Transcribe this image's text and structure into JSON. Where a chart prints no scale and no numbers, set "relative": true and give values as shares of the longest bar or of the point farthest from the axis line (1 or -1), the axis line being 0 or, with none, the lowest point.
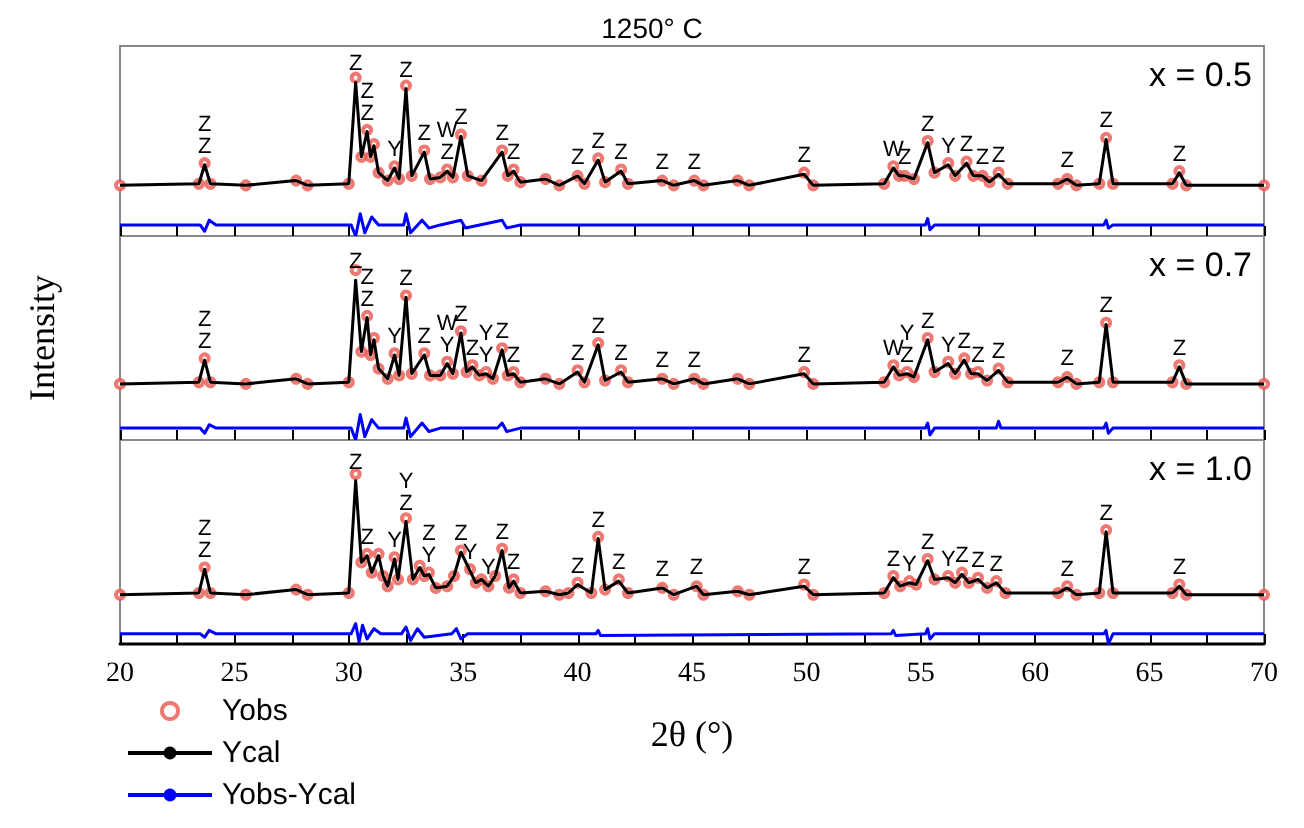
{
  "chart_data": [
    {
      "type": "line",
      "title": "1250° C",
      "relative": true,
      "xlim": [
        20,
        70
      ],
      "xticks": [
        20,
        {
          "value": 22.5,
          "label": null
        },
        25,
        {
          "value": 27.5,
          "label": null
        },
        30,
        {
          "value": 32.5,
          "label": null
        },
        35,
        {
          "value": 37.5,
          "label": null
        },
        40,
        {
          "value": 42.5,
          "label": null
        },
        45,
        {
          "value": 47.5,
          "label": null
        },
        50,
        {
          "value": 52.5,
          "label": null
        },
        55,
        {
          "value": 57.5,
          "label": null
        },
        60,
        {
          "value": 62.5,
          "label": null
        },
        65,
        {
          "value": 67.5,
          "label": null
        },
        70
      ],
      "tick_labels": false,
      "series": [
        {
          "type": "scatter",
          "marker": "circle",
          "color": "#e8584f",
          "x": [
            20,
            23.45,
            23.7,
            23.95,
            25.5,
            27.7,
            28.2,
            30.0,
            30.3,
            30.55,
            30.8,
            30.95,
            31.1,
            31.3,
            31.7,
            32.0,
            32.2,
            32.5,
            32.75,
            33.3,
            33.55,
            34.0,
            34.3,
            34.55,
            34.9,
            35.2,
            35.8,
            36.7,
            36.95,
            37.2,
            37.5,
            38.6,
            39.2,
            40.0,
            40.3,
            40.9,
            41.2,
            41.9,
            42.2,
            43.7,
            44.2,
            45.1,
            45.5,
            47.0,
            47.5,
            49.9,
            50.3,
            53.4,
            53.8,
            54.05,
            54.3,
            54.7,
            55.3,
            55.6,
            56.2,
            56.5,
            57.0,
            57.3,
            57.7,
            58.0,
            58.4,
            58.8,
            61.0,
            61.4,
            61.8,
            62.8,
            63.1,
            63.4,
            66.0,
            66.3,
            66.6,
            70
          ],
          "values": [
            0.32,
            0.33,
            0.46,
            0.33,
            0.32,
            0.35,
            0.32,
            0.33,
            1.0,
            0.5,
            0.67,
            0.5,
            0.58,
            0.4,
            0.35,
            0.44,
            0.36,
            0.95,
            0.38,
            0.54,
            0.36,
            0.37,
            0.42,
            0.37,
            0.64,
            0.38,
            0.35,
            0.54,
            0.38,
            0.42,
            0.34,
            0.36,
            0.32,
            0.38,
            0.33,
            0.49,
            0.34,
            0.42,
            0.33,
            0.35,
            0.32,
            0.35,
            0.32,
            0.35,
            0.32,
            0.4,
            0.32,
            0.33,
            0.44,
            0.38,
            0.38,
            0.36,
            0.6,
            0.4,
            0.46,
            0.38,
            0.47,
            0.38,
            0.38,
            0.34,
            0.4,
            0.33,
            0.33,
            0.36,
            0.32,
            0.33,
            0.62,
            0.33,
            0.33,
            0.41,
            0.32,
            0.32
          ]
        },
        {
          "type": "line",
          "marker": "none",
          "color": "#000000",
          "x": [
            20,
            23.45,
            23.7,
            23.95,
            25.5,
            27.7,
            28.2,
            30.0,
            30.3,
            30.55,
            30.8,
            30.95,
            31.1,
            31.3,
            31.7,
            32.0,
            32.2,
            32.5,
            32.75,
            33.3,
            33.55,
            34.0,
            34.3,
            34.55,
            34.9,
            35.2,
            35.8,
            36.7,
            36.95,
            37.2,
            37.5,
            38.6,
            39.2,
            40.0,
            40.3,
            40.9,
            41.2,
            41.9,
            42.2,
            43.7,
            44.2,
            45.1,
            45.5,
            47.0,
            47.5,
            49.9,
            50.3,
            53.4,
            53.8,
            54.05,
            54.3,
            54.7,
            55.3,
            55.6,
            56.2,
            56.5,
            57.0,
            57.3,
            57.7,
            58.0,
            58.4,
            58.8,
            61.0,
            61.4,
            61.8,
            62.8,
            63.1,
            63.4,
            66.0,
            66.3,
            66.6,
            70
          ],
          "values": [
            0.32,
            0.33,
            0.45,
            0.33,
            0.32,
            0.35,
            0.32,
            0.33,
            0.97,
            0.5,
            0.66,
            0.5,
            0.57,
            0.4,
            0.35,
            0.43,
            0.36,
            0.93,
            0.38,
            0.53,
            0.36,
            0.37,
            0.41,
            0.37,
            0.63,
            0.38,
            0.35,
            0.53,
            0.38,
            0.41,
            0.34,
            0.36,
            0.32,
            0.38,
            0.33,
            0.48,
            0.34,
            0.41,
            0.33,
            0.35,
            0.32,
            0.35,
            0.32,
            0.35,
            0.32,
            0.39,
            0.32,
            0.33,
            0.43,
            0.38,
            0.38,
            0.36,
            0.59,
            0.4,
            0.45,
            0.38,
            0.46,
            0.38,
            0.38,
            0.34,
            0.39,
            0.33,
            0.33,
            0.36,
            0.32,
            0.33,
            0.61,
            0.33,
            0.33,
            0.4,
            0.32,
            0.32
          ]
        },
        {
          "type": "line",
          "marker": "none",
          "color": "#0000ff",
          "x": [
            20,
            23.5,
            23.7,
            23.9,
            24.2,
            30.1,
            30.3,
            30.5,
            30.7,
            31.0,
            31.3,
            32.4,
            32.5,
            32.7,
            33.2,
            33.5,
            34.0,
            34.9,
            35.1,
            36.7,
            36.9,
            37.5,
            55.2,
            55.3,
            55.4,
            55.6,
            63.0,
            63.1,
            63.2,
            63.4,
            70
          ],
          "values": [
            0.07,
            0.07,
            0.03,
            0.1,
            0.07,
            0.07,
            0.0,
            0.14,
            0.02,
            0.12,
            0.07,
            0.07,
            0.14,
            0.02,
            0.1,
            0.05,
            0.07,
            0.1,
            0.05,
            0.1,
            0.05,
            0.07,
            0.07,
            0.11,
            0.04,
            0.07,
            0.07,
            0.1,
            0.05,
            0.07,
            0.07
          ]
        }
      ],
      "annotations": [
        "x = 0.5",
        {
          "text": "Z",
          "x": 23.7,
          "y": 0.45
        },
        {
          "text": "Z",
          "x": 23.7,
          "y": 0.45
        },
        {
          "text": "Z",
          "x": 30.3,
          "y": 0.97
        },
        {
          "text": "Z",
          "x": 30.8,
          "y": 0.66
        },
        {
          "text": "Z",
          "x": 30.8,
          "y": 0.66
        },
        {
          "text": "Y",
          "x": 32.0,
          "y": 0.43
        },
        {
          "text": "Z",
          "x": 32.5,
          "y": 0.93
        },
        {
          "text": "Z",
          "x": 34.3,
          "y": 0.41
        },
        {
          "text": "W",
          "x": 34.3,
          "y": 0.41
        },
        {
          "text": "Z",
          "x": 34.9,
          "y": 0.63
        },
        {
          "text": "Z",
          "x": 33.3,
          "y": 0.53
        },
        {
          "text": "Z",
          "x": 36.7,
          "y": 0.53
        },
        {
          "text": "Z",
          "x": 37.2,
          "y": 0.41
        },
        {
          "text": "Z",
          "x": 40.0,
          "y": 0.38
        },
        {
          "text": "Z",
          "x": 40.9,
          "y": 0.48
        },
        {
          "text": "Z",
          "x": 41.9,
          "y": 0.41
        },
        {
          "text": "Z",
          "x": 43.7,
          "y": 0.35
        },
        {
          "text": "Z",
          "x": 45.1,
          "y": 0.35
        },
        {
          "text": "Z",
          "x": 49.9,
          "y": 0.39
        },
        {
          "text": "W",
          "x": 53.8,
          "y": 0.43
        },
        {
          "text": "Z",
          "x": 54.3,
          "y": 0.38
        },
        {
          "text": "Z",
          "x": 55.3,
          "y": 0.59
        },
        {
          "text": "Y",
          "x": 56.2,
          "y": 0.45
        },
        {
          "text": "Z",
          "x": 57.0,
          "y": 0.46
        },
        {
          "text": "Z",
          "x": 57.7,
          "y": 0.38
        },
        {
          "text": "Z",
          "x": 58.4,
          "y": 0.39
        },
        {
          "text": "Z",
          "x": 61.4,
          "y": 0.36
        },
        {
          "text": "Z",
          "x": 63.1,
          "y": 0.61
        },
        {
          "text": "Z",
          "x": 66.3,
          "y": 0.4
        }
      ]
    },
    {
      "type": "line",
      "ylabel": "Intensity",
      "relative": true,
      "xlim": [
        20,
        70
      ],
      "xticks": [
        20,
        {
          "value": 22.5,
          "label": null
        },
        25,
        {
          "value": 27.5,
          "label": null
        },
        30,
        {
          "value": 32.5,
          "label": null
        },
        35,
        {
          "value": 37.5,
          "label": null
        },
        40,
        {
          "value": 42.5,
          "label": null
        },
        45,
        {
          "value": 47.5,
          "label": null
        },
        50,
        {
          "value": 52.5,
          "label": null
        },
        55,
        {
          "value": 57.5,
          "label": null
        },
        60,
        {
          "value": 62.5,
          "label": null
        },
        65,
        {
          "value": 67.5,
          "label": null
        },
        70
      ],
      "tick_labels": false,
      "series": [
        {
          "type": "scatter",
          "marker": "circle",
          "color": "#e8584f",
          "x": [
            20,
            23.45,
            23.7,
            23.95,
            25.5,
            27.7,
            28.2,
            30.0,
            30.3,
            30.55,
            30.8,
            30.95,
            31.1,
            31.3,
            31.7,
            32.0,
            32.2,
            32.5,
            32.75,
            33.3,
            33.55,
            34.0,
            34.3,
            34.55,
            34.9,
            35.15,
            35.4,
            35.7,
            36.0,
            36.3,
            36.7,
            36.95,
            37.2,
            37.5,
            38.6,
            39.2,
            40.0,
            40.3,
            40.9,
            41.2,
            41.9,
            42.2,
            43.7,
            44.2,
            45.1,
            45.5,
            47.0,
            47.5,
            49.9,
            50.3,
            53.4,
            53.8,
            54.05,
            54.4,
            54.7,
            55.3,
            55.6,
            56.2,
            56.5,
            56.9,
            57.2,
            57.5,
            57.9,
            58.4,
            58.8,
            61.0,
            61.4,
            61.8,
            62.8,
            63.1,
            63.4,
            66.0,
            66.3,
            66.6,
            70
          ],
          "values": [
            0.33,
            0.34,
            0.48,
            0.34,
            0.33,
            0.36,
            0.33,
            0.34,
            1.0,
            0.52,
            0.73,
            0.5,
            0.6,
            0.42,
            0.36,
            0.51,
            0.38,
            0.85,
            0.39,
            0.51,
            0.38,
            0.38,
            0.46,
            0.39,
            0.64,
            0.4,
            0.44,
            0.38,
            0.4,
            0.36,
            0.54,
            0.38,
            0.4,
            0.34,
            0.36,
            0.33,
            0.41,
            0.34,
            0.57,
            0.35,
            0.41,
            0.34,
            0.36,
            0.33,
            0.36,
            0.33,
            0.36,
            0.33,
            0.4,
            0.33,
            0.34,
            0.44,
            0.38,
            0.4,
            0.37,
            0.6,
            0.4,
            0.46,
            0.39,
            0.48,
            0.39,
            0.4,
            0.35,
            0.42,
            0.34,
            0.34,
            0.37,
            0.33,
            0.34,
            0.69,
            0.34,
            0.34,
            0.44,
            0.33,
            0.33
          ]
        },
        {
          "type": "line",
          "marker": "none",
          "color": "#000000",
          "x": [
            20,
            23.45,
            23.7,
            23.95,
            25.5,
            27.7,
            28.2,
            30.0,
            30.3,
            30.55,
            30.8,
            30.95,
            31.1,
            31.3,
            31.7,
            32.0,
            32.2,
            32.5,
            32.75,
            33.3,
            33.55,
            34.0,
            34.3,
            34.55,
            34.9,
            35.15,
            35.4,
            35.7,
            36.0,
            36.3,
            36.7,
            36.95,
            37.2,
            37.5,
            38.6,
            39.2,
            40.0,
            40.3,
            40.9,
            41.2,
            41.9,
            42.2,
            43.7,
            44.2,
            45.1,
            45.5,
            47.0,
            47.5,
            49.9,
            50.3,
            53.4,
            53.8,
            54.05,
            54.4,
            54.7,
            55.3,
            55.6,
            56.2,
            56.5,
            56.9,
            57.2,
            57.5,
            57.9,
            58.4,
            58.8,
            61.0,
            61.4,
            61.8,
            62.8,
            63.1,
            63.4,
            66.0,
            66.3,
            66.6,
            70
          ],
          "values": [
            0.33,
            0.34,
            0.47,
            0.34,
            0.33,
            0.36,
            0.33,
            0.34,
            0.94,
            0.52,
            0.72,
            0.5,
            0.59,
            0.42,
            0.36,
            0.5,
            0.38,
            0.84,
            0.39,
            0.5,
            0.38,
            0.38,
            0.45,
            0.39,
            0.63,
            0.4,
            0.43,
            0.38,
            0.39,
            0.36,
            0.53,
            0.38,
            0.39,
            0.34,
            0.36,
            0.33,
            0.4,
            0.34,
            0.56,
            0.35,
            0.4,
            0.34,
            0.36,
            0.33,
            0.36,
            0.33,
            0.36,
            0.33,
            0.39,
            0.33,
            0.34,
            0.43,
            0.38,
            0.39,
            0.37,
            0.59,
            0.4,
            0.45,
            0.39,
            0.47,
            0.39,
            0.39,
            0.35,
            0.41,
            0.34,
            0.34,
            0.37,
            0.33,
            0.34,
            0.68,
            0.34,
            0.34,
            0.43,
            0.33,
            0.33
          ]
        },
        {
          "type": "line",
          "marker": "none",
          "color": "#0000ff",
          "x": [
            20,
            23.5,
            23.7,
            23.9,
            24.2,
            30.1,
            30.3,
            30.5,
            30.7,
            31.0,
            31.3,
            32.4,
            32.5,
            32.7,
            33.2,
            33.5,
            34.0,
            36.5,
            36.7,
            36.9,
            37.5,
            55.2,
            55.3,
            55.4,
            55.6,
            58.3,
            58.4,
            58.5,
            63.0,
            63.1,
            63.2,
            63.4,
            70
          ],
          "values": [
            0.07,
            0.07,
            0.04,
            0.09,
            0.07,
            0.07,
            0.0,
            0.15,
            0.02,
            0.12,
            0.07,
            0.07,
            0.13,
            0.02,
            0.1,
            0.05,
            0.07,
            0.07,
            0.1,
            0.05,
            0.07,
            0.07,
            0.1,
            0.03,
            0.07,
            0.07,
            0.11,
            0.07,
            0.07,
            0.1,
            0.04,
            0.07,
            0.07
          ]
        }
      ],
      "annotations": [
        "x = 0.7",
        {
          "text": "Z",
          "x": 23.7,
          "y": 0.47
        },
        {
          "text": "Z",
          "x": 23.7,
          "y": 0.47
        },
        {
          "text": "Z",
          "x": 30.3,
          "y": 0.94
        },
        {
          "text": "Z",
          "x": 30.8,
          "y": 0.72
        },
        {
          "text": "Z",
          "x": 30.8,
          "y": 0.72
        },
        {
          "text": "Y",
          "x": 32.0,
          "y": 0.5
        },
        {
          "text": "Z",
          "x": 32.5,
          "y": 0.84
        },
        {
          "text": "Z",
          "x": 33.3,
          "y": 0.5
        },
        {
          "text": "Y",
          "x": 34.3,
          "y": 0.45
        },
        {
          "text": "W",
          "x": 34.3,
          "y": 0.45
        },
        {
          "text": "Z",
          "x": 34.9,
          "y": 0.63
        },
        {
          "text": "Z",
          "x": 35.4,
          "y": 0.43
        },
        {
          "text": "Y",
          "x": 36.0,
          "y": 0.39
        },
        {
          "text": "Y",
          "x": 36.0,
          "y": 0.39
        },
        {
          "text": "Z",
          "x": 36.7,
          "y": 0.53
        },
        {
          "text": "Z",
          "x": 37.2,
          "y": 0.39
        },
        {
          "text": "Z",
          "x": 40.0,
          "y": 0.4
        },
        {
          "text": "Z",
          "x": 40.9,
          "y": 0.56
        },
        {
          "text": "Z",
          "x": 41.9,
          "y": 0.4
        },
        {
          "text": "Z",
          "x": 43.7,
          "y": 0.36
        },
        {
          "text": "Z",
          "x": 45.1,
          "y": 0.36
        },
        {
          "text": "Z",
          "x": 49.9,
          "y": 0.39
        },
        {
          "text": "W",
          "x": 53.8,
          "y": 0.43
        },
        {
          "text": "Z",
          "x": 54.4,
          "y": 0.39
        },
        {
          "text": "Y",
          "x": 54.4,
          "y": 0.39
        },
        {
          "text": "Z",
          "x": 55.3,
          "y": 0.59
        },
        {
          "text": "Y",
          "x": 56.2,
          "y": 0.45
        },
        {
          "text": "Z",
          "x": 56.9,
          "y": 0.47
        },
        {
          "text": "Z",
          "x": 57.5,
          "y": 0.39
        },
        {
          "text": "Z",
          "x": 58.4,
          "y": 0.41
        },
        {
          "text": "Z",
          "x": 61.4,
          "y": 0.37
        },
        {
          "text": "Z",
          "x": 63.1,
          "y": 0.68
        },
        {
          "text": "Z",
          "x": 66.3,
          "y": 0.43
        }
      ]
    },
    {
      "type": "line",
      "xlabel": "2θ (°)",
      "relative": true,
      "legend": "bottom left",
      "xlim": [
        20,
        70
      ],
      "xticks": [
        20,
        {
          "value": 22.5,
          "label": null
        },
        25,
        {
          "value": 27.5,
          "label": null
        },
        30,
        {
          "value": 32.5,
          "label": null
        },
        35,
        {
          "value": 37.5,
          "label": null
        },
        40,
        {
          "value": 42.5,
          "label": null
        },
        45,
        {
          "value": 47.5,
          "label": null
        },
        50,
        {
          "value": 52.5,
          "label": null
        },
        55,
        {
          "value": 57.5,
          "label": null
        },
        60,
        {
          "value": 62.5,
          "label": null
        },
        65,
        {
          "value": 67.5,
          "label": null
        },
        70
      ],
      "tick_labels": "x",
      "series": [
        {
          "name": "Yobs",
          "type": "scatter",
          "marker": "circle",
          "color": "#e8584f",
          "x": [
            20,
            23.45,
            23.7,
            23.95,
            25.5,
            27.7,
            28.2,
            30.0,
            30.3,
            30.55,
            30.8,
            31.0,
            31.3,
            31.5,
            31.7,
            32.0,
            32.15,
            32.5,
            32.8,
            33.1,
            33.3,
            33.5,
            33.8,
            34.3,
            34.6,
            34.9,
            35.3,
            35.55,
            35.8,
            36.1,
            36.4,
            36.7,
            37.0,
            37.2,
            37.5,
            38.6,
            39.2,
            39.6,
            40.0,
            40.6,
            40.9,
            41.2,
            41.8,
            42.2,
            43.7,
            44.2,
            45.2,
            45.5,
            47.0,
            47.5,
            49.9,
            50.3,
            53.4,
            53.8,
            54.1,
            54.5,
            54.8,
            55.3,
            55.6,
            56.2,
            56.5,
            56.8,
            57.1,
            57.5,
            57.9,
            58.3,
            58.7,
            61.0,
            61.4,
            61.8,
            62.8,
            63.1,
            63.4,
            66.0,
            66.3,
            66.6,
            70
          ],
          "values": [
            0.29,
            0.3,
            0.45,
            0.3,
            0.29,
            0.32,
            0.29,
            0.3,
            1.0,
            0.48,
            0.53,
            0.42,
            0.53,
            0.4,
            0.34,
            0.51,
            0.38,
            0.74,
            0.38,
            0.46,
            0.4,
            0.42,
            0.33,
            0.34,
            0.4,
            0.55,
            0.44,
            0.36,
            0.38,
            0.34,
            0.4,
            0.56,
            0.33,
            0.38,
            0.3,
            0.31,
            0.29,
            0.3,
            0.36,
            0.3,
            0.63,
            0.32,
            0.38,
            0.3,
            0.33,
            0.29,
            0.34,
            0.29,
            0.31,
            0.29,
            0.35,
            0.29,
            0.3,
            0.4,
            0.34,
            0.37,
            0.35,
            0.5,
            0.38,
            0.4,
            0.36,
            0.42,
            0.36,
            0.39,
            0.33,
            0.37,
            0.3,
            0.3,
            0.34,
            0.29,
            0.3,
            0.67,
            0.3,
            0.3,
            0.35,
            0.29,
            0.29
          ]
        },
        {
          "name": "Ycal",
          "type": "line",
          "marker": "none",
          "color": "#000000",
          "x": [
            20,
            23.45,
            23.7,
            23.95,
            25.5,
            27.7,
            28.2,
            30.0,
            30.3,
            30.55,
            30.8,
            31.0,
            31.3,
            31.5,
            31.7,
            32.0,
            32.15,
            32.5,
            32.8,
            33.1,
            33.3,
            33.5,
            33.8,
            34.3,
            34.6,
            34.9,
            35.3,
            35.55,
            35.8,
            36.1,
            36.4,
            36.7,
            37.0,
            37.2,
            37.5,
            38.6,
            39.2,
            39.6,
            40.0,
            40.6,
            40.9,
            41.2,
            41.8,
            42.2,
            43.7,
            44.2,
            45.2,
            45.5,
            47.0,
            47.5,
            49.9,
            50.3,
            53.4,
            53.8,
            54.1,
            54.5,
            54.8,
            55.3,
            55.6,
            56.2,
            56.5,
            56.8,
            57.1,
            57.5,
            57.9,
            58.3,
            58.7,
            61.0,
            61.4,
            61.8,
            62.8,
            63.1,
            63.4,
            66.0,
            66.3,
            66.6,
            70
          ],
          "values": [
            0.29,
            0.3,
            0.44,
            0.3,
            0.29,
            0.32,
            0.29,
            0.3,
            0.96,
            0.48,
            0.52,
            0.42,
            0.52,
            0.4,
            0.34,
            0.5,
            0.38,
            0.72,
            0.38,
            0.45,
            0.4,
            0.41,
            0.33,
            0.34,
            0.4,
            0.54,
            0.43,
            0.36,
            0.38,
            0.34,
            0.4,
            0.55,
            0.33,
            0.37,
            0.3,
            0.31,
            0.29,
            0.3,
            0.35,
            0.3,
            0.62,
            0.32,
            0.37,
            0.3,
            0.33,
            0.29,
            0.34,
            0.29,
            0.31,
            0.29,
            0.34,
            0.29,
            0.3,
            0.39,
            0.34,
            0.36,
            0.35,
            0.49,
            0.38,
            0.39,
            0.36,
            0.41,
            0.36,
            0.38,
            0.33,
            0.36,
            0.3,
            0.3,
            0.33,
            0.29,
            0.3,
            0.66,
            0.3,
            0.3,
            0.34,
            0.29,
            0.29
          ]
        },
        {
          "name": "Yobs-Ycal",
          "type": "line",
          "marker": "none",
          "color": "#0000ff",
          "x": [
            20,
            23.5,
            23.7,
            23.9,
            24.2,
            30.1,
            30.3,
            30.45,
            30.6,
            30.8,
            31.1,
            31.4,
            32.3,
            32.5,
            32.7,
            33.0,
            33.3,
            34.5,
            34.7,
            34.9,
            35.2,
            40.8,
            40.9,
            41.0,
            53.7,
            53.8,
            53.9,
            55.2,
            55.3,
            55.4,
            55.6,
            63.0,
            63.1,
            63.2,
            63.4,
            70
          ],
          "values": [
            0.06,
            0.06,
            0.04,
            0.08,
            0.06,
            0.06,
            0.12,
            0.01,
            0.11,
            0.03,
            0.09,
            0.06,
            0.06,
            0.1,
            0.02,
            0.09,
            0.04,
            0.06,
            0.09,
            0.03,
            0.06,
            0.06,
            0.08,
            0.05,
            0.06,
            0.08,
            0.05,
            0.06,
            0.09,
            0.03,
            0.06,
            0.06,
            0.08,
            0.0,
            0.06,
            0.06
          ]
        }
      ],
      "annotations": [
        "x = 1.0",
        {
          "text": "Z",
          "x": 23.7,
          "y": 0.44
        },
        {
          "text": "Z",
          "x": 23.7,
          "y": 0.44
        },
        {
          "text": "Z",
          "x": 30.3,
          "y": 0.96
        },
        {
          "text": "Z",
          "x": 30.8,
          "y": 0.52
        },
        {
          "text": "Y",
          "x": 32.0,
          "y": 0.5
        },
        {
          "text": "Z",
          "x": 32.5,
          "y": 0.72
        },
        {
          "text": "Y",
          "x": 32.5,
          "y": 0.72
        },
        {
          "text": "Y",
          "x": 33.5,
          "y": 0.41
        },
        {
          "text": "Z",
          "x": 33.5,
          "y": 0.41
        },
        {
          "text": "Z",
          "x": 34.9,
          "y": 0.54
        },
        {
          "text": "Y",
          "x": 35.3,
          "y": 0.43
        },
        {
          "text": "Y",
          "x": 36.1,
          "y": 0.34
        },
        {
          "text": "Z",
          "x": 36.7,
          "y": 0.55
        },
        {
          "text": "Z",
          "x": 37.2,
          "y": 0.37
        },
        {
          "text": "Z",
          "x": 40.0,
          "y": 0.35
        },
        {
          "text": "Z",
          "x": 40.9,
          "y": 0.62
        },
        {
          "text": "Z",
          "x": 41.8,
          "y": 0.37
        },
        {
          "text": "Z",
          "x": 43.7,
          "y": 0.33
        },
        {
          "text": "Z",
          "x": 45.2,
          "y": 0.34
        },
        {
          "text": "Z",
          "x": 49.9,
          "y": 0.34
        },
        {
          "text": "Z",
          "x": 53.8,
          "y": 0.39
        },
        {
          "text": "Y",
          "x": 54.5,
          "y": 0.36
        },
        {
          "text": "Z",
          "x": 55.3,
          "y": 0.49
        },
        {
          "text": "Y",
          "x": 56.2,
          "y": 0.39
        },
        {
          "text": "Z",
          "x": 56.8,
          "y": 0.41
        },
        {
          "text": "Z",
          "x": 57.5,
          "y": 0.38
        },
        {
          "text": "Z",
          "x": 58.3,
          "y": 0.36
        },
        {
          "text": "Z",
          "x": 61.4,
          "y": 0.33
        },
        {
          "text": "Z",
          "x": 63.1,
          "y": 0.66
        },
        {
          "text": "Z",
          "x": 66.3,
          "y": 0.34
        }
      ]
    }
  ]
}
